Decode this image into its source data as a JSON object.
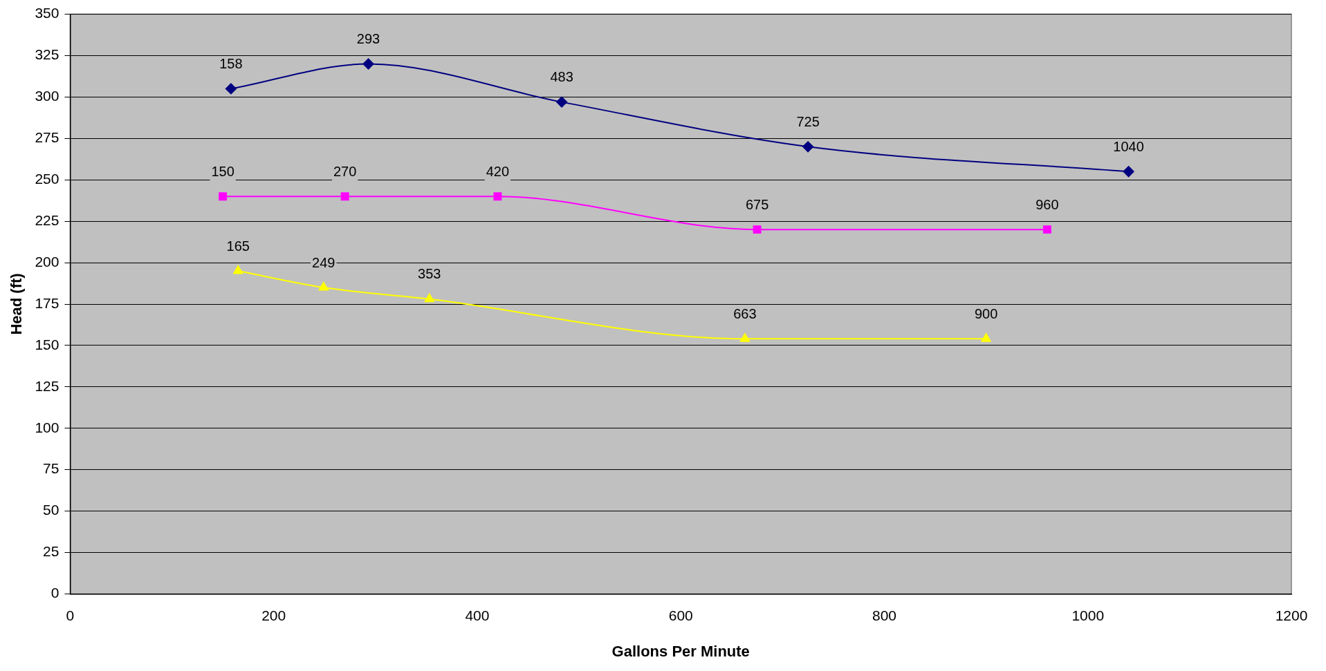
{
  "chart_data": {
    "type": "line",
    "xlabel": "Gallons Per Minute",
    "ylabel": "Head (ft)",
    "xlim": [
      0,
      1200
    ],
    "xticks": [
      0,
      200,
      400,
      600,
      800,
      1000,
      1200
    ],
    "ylim": [
      0,
      350
    ],
    "yticks": [
      0,
      25,
      50,
      75,
      100,
      125,
      150,
      175,
      200,
      225,
      250,
      275,
      300,
      325,
      350
    ],
    "grid": "y",
    "legend": false,
    "series": [
      {
        "color": "#000080",
        "marker": "diamond",
        "x": [
          158,
          293,
          483,
          725,
          1040
        ],
        "values": [
          305,
          320,
          297,
          270,
          255
        ]
      },
      {
        "color": "#ff00ff",
        "marker": "square",
        "x": [
          150,
          270,
          420,
          675,
          960
        ],
        "values": [
          240,
          240,
          240,
          220,
          220
        ]
      },
      {
        "color": "#ffff00",
        "marker": "triangle",
        "x": [
          165,
          249,
          353,
          663,
          900
        ],
        "values": [
          195,
          185,
          178,
          154,
          154
        ]
      }
    ],
    "annotations": [
      {
        "text": "158",
        "x": 158,
        "y": 305
      },
      {
        "text": "293",
        "x": 293,
        "y": 320
      },
      {
        "text": "483",
        "x": 483,
        "y": 297
      },
      {
        "text": "725",
        "x": 725,
        "y": 270
      },
      {
        "text": "1040",
        "x": 1040,
        "y": 255
      },
      {
        "text": "150",
        "x": 150,
        "y": 240
      },
      {
        "text": "270",
        "x": 270,
        "y": 240
      },
      {
        "text": "420",
        "x": 420,
        "y": 240
      },
      {
        "text": "675",
        "x": 675,
        "y": 220
      },
      {
        "text": "960",
        "x": 960,
        "y": 220
      },
      {
        "text": "165",
        "x": 165,
        "y": 195
      },
      {
        "text": "249",
        "x": 249,
        "y": 185
      },
      {
        "text": "353",
        "x": 353,
        "y": 178
      },
      {
        "text": "663",
        "x": 663,
        "y": 154
      },
      {
        "text": "900",
        "x": 900,
        "y": 154
      }
    ]
  }
}
